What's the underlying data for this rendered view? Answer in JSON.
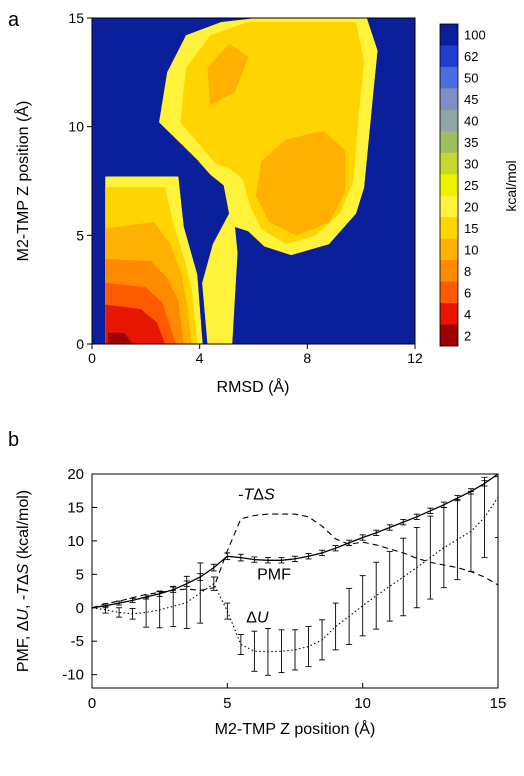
{
  "panel_a": {
    "panel_letter": "a",
    "chart_data": {
      "type": "heatmap",
      "xlabel": "RMSD (Å)",
      "ylabel": "M2-TMP Z position (Å)",
      "xlim": [
        0,
        12
      ],
      "ylim": [
        0,
        15
      ],
      "x_ticks": [
        "0",
        "4",
        "8",
        "12"
      ],
      "y_ticks": [
        "0",
        "5",
        "10",
        "15"
      ],
      "colorbar_label": "kcal/mol",
      "colorbar_levels": [
        "100",
        "62",
        "50",
        "45",
        "40",
        "35",
        "30",
        "25",
        "20",
        "15",
        "10",
        "8",
        "6",
        "4",
        "2"
      ],
      "colorbar_colors": [
        "#0a1f99",
        "#1f3fd0",
        "#4a6ddf",
        "#7f8fc4",
        "#8fa6a6",
        "#9fbe60",
        "#c6d82e",
        "#eef200",
        "#fff23a",
        "#ffd400",
        "#ffb000",
        "#ff8a00",
        "#ff5a00",
        "#e81500",
        "#a00000"
      ],
      "regions": [
        {
          "level": "20",
          "polygon": [
            [
              0.5,
              0
            ],
            [
              0.5,
              7.7
            ],
            [
              3.2,
              7.7
            ],
            [
              3.4,
              5.4
            ],
            [
              3.9,
              3.2
            ],
            [
              4.1,
              0
            ]
          ]
        },
        {
          "level": "20",
          "polygon": [
            [
              3.9,
              8.5
            ],
            [
              2.5,
              10.2
            ],
            [
              2.8,
              12.5
            ],
            [
              3.5,
              14.2
            ],
            [
              4.8,
              14.8
            ],
            [
              6.2,
              15
            ],
            [
              10.2,
              15
            ],
            [
              10.6,
              13.5
            ],
            [
              10.4,
              11
            ],
            [
              10.1,
              7.2
            ],
            [
              9.8,
              6
            ],
            [
              8.8,
              4.6
            ],
            [
              7.4,
              4.1
            ],
            [
              6.4,
              4.5
            ],
            [
              5.8,
              5.2
            ],
            [
              5.3,
              5.4
            ],
            [
              5.4,
              4.2
            ],
            [
              5.2,
              0
            ],
            [
              4.3,
              0
            ],
            [
              4.1,
              2.8
            ],
            [
              4.5,
              4.6
            ],
            [
              5.1,
              6
            ],
            [
              4.9,
              7.3
            ],
            [
              4.4,
              7.8
            ]
          ]
        },
        {
          "level": "15",
          "polygon": [
            [
              0.5,
              0
            ],
            [
              0.5,
              7.2
            ],
            [
              2.7,
              7.2
            ],
            [
              3.0,
              5.6
            ],
            [
              3.4,
              4.0
            ],
            [
              3.7,
              2.5
            ],
            [
              3.9,
              0
            ]
          ]
        },
        {
          "level": "15",
          "polygon": [
            [
              4.6,
              8.3
            ],
            [
              3.3,
              10.2
            ],
            [
              3.5,
              12.7
            ],
            [
              4.4,
              14.2
            ],
            [
              5.8,
              14.8
            ],
            [
              9.8,
              14.8
            ],
            [
              10.1,
              13.0
            ],
            [
              9.9,
              10.6
            ],
            [
              9.7,
              7.5
            ],
            [
              9.2,
              6
            ],
            [
              8.3,
              5.0
            ],
            [
              7.2,
              4.6
            ],
            [
              6.3,
              5.3
            ],
            [
              5.9,
              6.3
            ],
            [
              5.6,
              7.6
            ],
            [
              5.1,
              8.1
            ]
          ]
        },
        {
          "level": "10",
          "polygon": [
            [
              0.5,
              0
            ],
            [
              0.5,
              5.3
            ],
            [
              2.3,
              5.6
            ],
            [
              2.9,
              4.6
            ],
            [
              3.3,
              3.3
            ],
            [
              3.5,
              2.0
            ],
            [
              3.7,
              0
            ]
          ]
        },
        {
          "level": "10",
          "polygon": [
            [
              6.6,
              5.6
            ],
            [
              6.1,
              6.8
            ],
            [
              6.3,
              8.4
            ],
            [
              7.2,
              9.4
            ],
            [
              8.6,
              9.8
            ],
            [
              9.4,
              8.9
            ],
            [
              9.4,
              7.0
            ],
            [
              8.8,
              5.6
            ],
            [
              7.6,
              5.0
            ]
          ]
        },
        {
          "level": "10",
          "polygon": [
            [
              4.4,
              11.0
            ],
            [
              4.3,
              12.7
            ],
            [
              5.1,
              13.8
            ],
            [
              5.8,
              13.2
            ],
            [
              5.3,
              11.6
            ]
          ]
        },
        {
          "level": "8",
          "polygon": [
            [
              0.5,
              0
            ],
            [
              0.5,
              3.9
            ],
            [
              2.2,
              3.8
            ],
            [
              2.8,
              3.0
            ],
            [
              3.2,
              2.0
            ],
            [
              3.4,
              0
            ]
          ]
        },
        {
          "level": "6",
          "polygon": [
            [
              0.5,
              0
            ],
            [
              0.5,
              2.8
            ],
            [
              2.0,
              2.6
            ],
            [
              2.6,
              1.9
            ],
            [
              2.9,
              0.8
            ],
            [
              3.1,
              0
            ]
          ]
        },
        {
          "level": "4",
          "polygon": [
            [
              0.5,
              0
            ],
            [
              0.5,
              1.8
            ],
            [
              1.8,
              1.6
            ],
            [
              2.4,
              1.0
            ],
            [
              2.7,
              0
            ]
          ]
        },
        {
          "level": "2",
          "polygon": [
            [
              0.6,
              0
            ],
            [
              0.6,
              0.5
            ],
            [
              1.2,
              0.5
            ],
            [
              1.5,
              0
            ]
          ]
        }
      ]
    }
  },
  "panel_b": {
    "panel_letter": "b",
    "chart_data": {
      "type": "line",
      "xlabel_parts": [
        "M2-TMP ",
        "Z",
        " position (Å)"
      ],
      "ylabel_parts": [
        "PMF, ",
        "Δ",
        "U",
        ", -",
        "T",
        "Δ",
        "S",
        " (kcal/mol)"
      ],
      "xlim": [
        0,
        15
      ],
      "ylim": [
        -12,
        20
      ],
      "x_ticks": [
        "0",
        "5",
        "10",
        "15"
      ],
      "y_ticks": [
        "-10",
        "-5",
        "0",
        "5",
        "10",
        "15",
        "20"
      ],
      "series": [
        {
          "name": "PMF",
          "style": "solid",
          "x": [
            0,
            0.5,
            1,
            1.5,
            2,
            2.5,
            3,
            3.5,
            4,
            4.5,
            5,
            5.5,
            6,
            6.5,
            7,
            7.5,
            8,
            8.5,
            9,
            9.5,
            10,
            10.5,
            11,
            11.5,
            12,
            12.5,
            13,
            13.5,
            14,
            14.5,
            15
          ],
          "y": [
            0,
            0.3,
            0.7,
            1.1,
            1.6,
            2.1,
            2.7,
            3.6,
            4.6,
            6.0,
            7.7,
            7.5,
            7.2,
            7.1,
            7.1,
            7.3,
            7.7,
            8.2,
            8.9,
            9.7,
            10.5,
            11.2,
            12.0,
            12.8,
            13.6,
            14.5,
            15.4,
            16.4,
            17.4,
            18.6,
            20.0
          ],
          "error": [
            0,
            0.3,
            0.3,
            0.3,
            0.3,
            0.4,
            0.4,
            0.4,
            0.5,
            0.5,
            0.5,
            0.5,
            0.4,
            0.4,
            0.4,
            0.4,
            0.4,
            0.4,
            0.4,
            0.4,
            0.4,
            0.4,
            0.4,
            0.4,
            0.4,
            0.4,
            0.4,
            0.4,
            0.4,
            0.4,
            0.4
          ]
        },
        {
          "name": "ΔU",
          "label_parts": [
            "Δ",
            "U"
          ],
          "style": "dotted",
          "x": [
            0,
            0.5,
            1,
            1.5,
            2,
            2.5,
            3,
            3.5,
            4,
            4.5,
            5,
            5.5,
            6,
            6.5,
            7,
            7.5,
            8,
            8.5,
            9,
            9.5,
            10,
            10.5,
            11,
            11.5,
            12,
            12.5,
            13,
            13.5,
            14,
            14.5,
            15
          ],
          "y": [
            0,
            -0.3,
            -0.7,
            -0.9,
            -0.7,
            -0.3,
            0.2,
            0.8,
            2.2,
            3.6,
            -0.5,
            -5.5,
            -6.5,
            -6.6,
            -6.5,
            -6.3,
            -5.8,
            -4.8,
            -2.8,
            -1.3,
            0.3,
            1.8,
            3.2,
            4.6,
            6.0,
            7.5,
            9.0,
            10.2,
            11.4,
            13.5,
            16.5
          ],
          "error": [
            0,
            0.5,
            0.7,
            0.8,
            2.2,
            2.7,
            3.0,
            3.9,
            4.5,
            1.0,
            1.2,
            1.5,
            3.0,
            3.5,
            3.2,
            3.0,
            3.0,
            3.0,
            3.5,
            4.2,
            4.5,
            5.0,
            5.2,
            5.8,
            6.0,
            6.2,
            6.0,
            6.0,
            6.0,
            6.0,
            6.0
          ]
        },
        {
          "name": "-TΔS",
          "label_parts": [
            "-",
            "T",
            "Δ",
            "S"
          ],
          "style": "dashed",
          "x": [
            0,
            0.5,
            1,
            1.5,
            2,
            2.5,
            3,
            3.5,
            4,
            4.5,
            5,
            5.5,
            6,
            6.5,
            7,
            7.5,
            8,
            8.5,
            9,
            9.5,
            10,
            10.5,
            11,
            11.5,
            12,
            12.5,
            13,
            13.5,
            14,
            14.5,
            15
          ],
          "y": [
            0,
            0.6,
            1.0,
            1.5,
            2.0,
            2.3,
            2.6,
            2.8,
            2.6,
            3.0,
            8.5,
            13.3,
            13.8,
            14.0,
            14.0,
            14.0,
            13.6,
            12.2,
            10.3,
            9.5,
            9.8,
            9.4,
            8.8,
            8.2,
            7.4,
            6.8,
            6.4,
            6.0,
            5.4,
            4.6,
            3.4
          ]
        }
      ]
    }
  }
}
